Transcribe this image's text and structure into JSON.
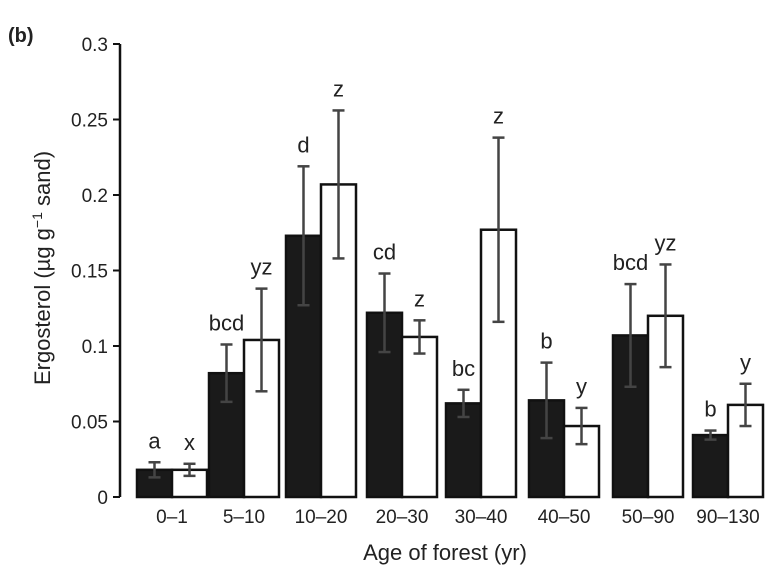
{
  "panel_label": "(b)",
  "chart_data": {
    "type": "bar",
    "title": "",
    "xlabel": "Age of forest (yr)",
    "ylabel_main": "Ergosterol (µg g",
    "ylabel_sup": "−1",
    "ylabel_tail": " sand)",
    "ylim": [
      0,
      0.3
    ],
    "yticks": [
      0,
      0.05,
      0.1,
      0.15,
      0.2,
      0.25,
      0.3
    ],
    "ytick_labels": [
      "0",
      "0.05",
      "0.1",
      "0.15",
      "0.2",
      "0.25",
      "0.3"
    ],
    "grid": false,
    "categories": [
      "0–1",
      "5–10",
      "10–20",
      "20–30",
      "30–40",
      "40–50",
      "50–90",
      "90–130"
    ],
    "series": [
      {
        "fill": "#1a1a1a",
        "values": [
          0.018,
          0.082,
          0.173,
          0.122,
          0.062,
          0.064,
          0.107,
          0.041
        ],
        "errors": [
          0.005,
          0.019,
          0.046,
          0.026,
          0.009,
          0.025,
          0.034,
          0.003
        ],
        "sig_labels": [
          "a",
          "bcd",
          "d",
          "cd",
          "bc",
          "b",
          "bcd",
          "b"
        ]
      },
      {
        "fill": "#ffffff",
        "values": [
          0.018,
          0.104,
          0.207,
          0.106,
          0.177,
          0.047,
          0.12,
          0.061
        ],
        "errors": [
          0.004,
          0.034,
          0.049,
          0.011,
          0.061,
          0.012,
          0.034,
          0.014
        ],
        "sig_labels": [
          "x",
          "yz",
          "z",
          "z",
          "z",
          "y",
          "yz",
          "y"
        ]
      }
    ]
  },
  "colors": {
    "axis": "#111111",
    "errorbar": "#444444",
    "text": "#222222"
  }
}
